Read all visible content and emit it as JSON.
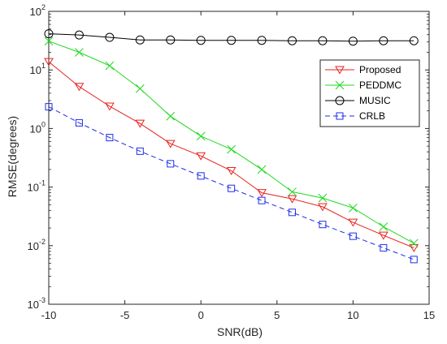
{
  "chart_data": {
    "type": "line",
    "xlabel": "SNR(dB)",
    "ylabel": "RMSE(degrees)",
    "xlim": [
      -10,
      15
    ],
    "ylim": [
      0.001,
      100
    ],
    "yscale": "log",
    "x_ticks": [
      -10,
      -5,
      0,
      5,
      10,
      15
    ],
    "x_tick_labels": [
      "-10",
      "-5",
      "0",
      "5",
      "10",
      "15"
    ],
    "y_ticks": [
      0.001,
      0.01,
      0.1,
      1,
      10,
      100
    ],
    "y_tick_labels": [
      {
        "base": "10",
        "exp": "-3"
      },
      {
        "base": "10",
        "exp": "-2"
      },
      {
        "base": "10",
        "exp": "-1"
      },
      {
        "base": "10",
        "exp": "0"
      },
      {
        "base": "10",
        "exp": "1"
      },
      {
        "base": "10",
        "exp": "2"
      }
    ],
    "grid": false,
    "legend_position": "upper-right",
    "x": [
      -10,
      -8,
      -6,
      -4,
      -2,
      0,
      2,
      4,
      6,
      8,
      10,
      12,
      14
    ],
    "series": [
      {
        "name": "Proposed",
        "color": "#e8211e",
        "marker": "triangle-down",
        "line_style": "solid",
        "values": [
          13.8,
          5.2,
          2.4,
          1.22,
          0.55,
          0.34,
          0.19,
          0.08,
          0.063,
          0.046,
          0.025,
          0.015,
          0.0092
        ]
      },
      {
        "name": "PEDDMC",
        "color": "#1fd81f",
        "marker": "x",
        "line_style": "solid",
        "values": [
          31,
          20,
          11.8,
          4.8,
          1.62,
          0.74,
          0.44,
          0.2,
          0.083,
          0.065,
          0.044,
          0.021,
          0.011
        ]
      },
      {
        "name": "MUSIC",
        "color": "#000000",
        "marker": "circle",
        "line_style": "solid",
        "values": [
          41.5,
          39.5,
          36,
          32.5,
          32.5,
          32,
          32,
          32,
          31.5,
          31.5,
          31,
          31.5,
          31.5
        ]
      },
      {
        "name": "CRLB",
        "color": "#1f2ee8",
        "marker": "square",
        "line_style": "dashed",
        "values": [
          2.35,
          1.25,
          0.7,
          0.41,
          0.25,
          0.155,
          0.095,
          0.059,
          0.037,
          0.023,
          0.0145,
          0.0092,
          0.0058
        ]
      }
    ]
  }
}
